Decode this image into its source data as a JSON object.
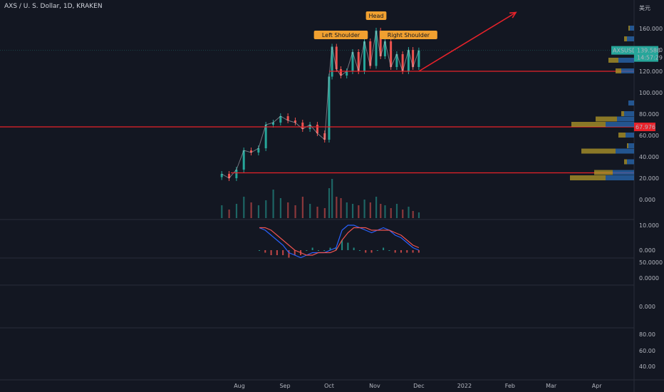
{
  "header": {
    "symbol_line": "AXS / U. S. Dollar, 1D, KRAKEN"
  },
  "colors": {
    "bg": "#131722",
    "up": "#26a69a",
    "down": "#ef5350",
    "level": "#e8222a",
    "annotation": "#f0a030",
    "macd": "#2962ff",
    "signal": "#ef5350",
    "vp_up": "#2a6bb4",
    "vp_down": "#b39a2a"
  },
  "chart_data": [
    {
      "type": "line",
      "title": "AXS / U. S. Dollar, 1D, KRAKEN",
      "x_ticks": [
        "Aug",
        "Sep",
        "Oct",
        "Nov",
        "Dec",
        "2022",
        "Feb",
        "Mar",
        "Apr"
      ],
      "y_ticks": [
        "160.000",
        "140.000",
        "120.000",
        "100.000",
        "80.000",
        "60.000",
        "40.000",
        "20.000",
        "0.000"
      ],
      "y_unit_label": "美元",
      "ylim": [
        -10,
        170
      ],
      "series": [
        {
          "dates": [
            "Jul 20",
            "Jul 25",
            "Jul 30",
            "Aug 04",
            "Aug 09",
            "Aug 14",
            "Aug 19",
            "Aug 24",
            "Aug 29",
            "Sep 03",
            "Sep 08",
            "Sep 13",
            "Sep 18",
            "Sep 23",
            "Sep 28",
            "Oct 01",
            "Oct 03",
            "Oct 06",
            "Oct 09",
            "Oct 13",
            "Oct 17",
            "Oct 21",
            "Oct 25",
            "Oct 29",
            "Nov 02",
            "Nov 05",
            "Nov 08",
            "Nov 12",
            "Nov 16",
            "Nov 20",
            "Nov 24",
            "Nov 27",
            "Dec 01"
          ],
          "values": [
            24,
            20,
            28,
            46,
            44,
            48,
            70,
            72,
            78,
            74,
            72,
            66,
            70,
            62,
            56,
            115,
            143,
            122,
            116,
            120,
            138,
            120,
            148,
            125,
            158,
            134,
            148,
            124,
            136,
            120,
            140,
            124,
            139.5
          ]
        }
      ],
      "current_price_label": "AXSUSD",
      "current_price": "139.580",
      "countdown": "14:57:29",
      "levels": [
        {
          "value": 120,
          "type": "neckline"
        },
        {
          "value": "67.976",
          "label": "67.976"
        },
        {
          "value": 25,
          "type": "support"
        }
      ],
      "annotations": [
        {
          "text": "Left Shoulder",
          "date": "Oct 09",
          "value": 140
        },
        {
          "text": "Head",
          "date": "Nov 02",
          "value": 158
        },
        {
          "text": "Right Shoulder",
          "date": "Nov 24",
          "value": 140
        }
      ],
      "target_arrow": {
        "from_date": "Dec 01",
        "from_value": 120,
        "to_date": "Feb 05",
        "to_value": 175
      },
      "volume": [
        18,
        12,
        20,
        30,
        22,
        18,
        25,
        40,
        28,
        22,
        18,
        30,
        20,
        16,
        14,
        42,
        55,
        30,
        28,
        22,
        20,
        18,
        26,
        22,
        30,
        20,
        18,
        14,
        20,
        12,
        16,
        10,
        8
      ],
      "volume_profile": [
        {
          "price": 160,
          "buy": 6,
          "sell": 2
        },
        {
          "price": 150,
          "buy": 10,
          "sell": 4
        },
        {
          "price": 140,
          "buy": 16,
          "sell": 10
        },
        {
          "price": 130,
          "buy": 22,
          "sell": 14
        },
        {
          "price": 120,
          "buy": 18,
          "sell": 8
        },
        {
          "price": 90,
          "buy": 8,
          "sell": 0
        },
        {
          "price": 80,
          "buy": 14,
          "sell": 4
        },
        {
          "price": 75,
          "buy": 24,
          "sell": 30
        },
        {
          "price": 70,
          "buy": 40,
          "sell": 48
        },
        {
          "price": 60,
          "buy": 12,
          "sell": 10
        },
        {
          "price": 50,
          "buy": 8,
          "sell": 2
        },
        {
          "price": 45,
          "buy": 26,
          "sell": 48
        },
        {
          "price": 35,
          "buy": 10,
          "sell": 4
        },
        {
          "price": 25,
          "buy": 30,
          "sell": 26
        },
        {
          "price": 20,
          "buy": 40,
          "sell": 50
        }
      ]
    },
    {
      "type": "line",
      "title": "",
      "y_ticks": [
        "10.000",
        "0.000"
      ],
      "series": [
        {
          "name": "",
          "values": [
            9,
            8,
            6,
            4,
            2,
            -1,
            -2,
            -3,
            -2,
            -1,
            -1,
            -1,
            0,
            1,
            8,
            10,
            10,
            9,
            8,
            7,
            8,
            9,
            8,
            6,
            5,
            3,
            1,
            0
          ]
        },
        {
          "name": "",
          "values": [
            9,
            9,
            8,
            6,
            4,
            2,
            0,
            -1,
            -2,
            -2,
            -1,
            -1,
            -1,
            0,
            4,
            7,
            9,
            9,
            9,
            8,
            8,
            8,
            8,
            7,
            6,
            4,
            2,
            1
          ]
        }
      ],
      "histogram": [
        0,
        -1,
        -2,
        -2,
        -2,
        -3,
        -2,
        -2,
        0,
        1,
        0,
        0,
        1,
        1,
        4,
        3,
        1,
        0,
        -1,
        -1,
        0,
        1,
        0,
        -1,
        -1,
        -1,
        -1,
        -1
      ],
      "ylim": [
        -4,
        12
      ]
    },
    {
      "type": "line",
      "title": "",
      "y_ticks": [
        "50.0000",
        "0.0000"
      ],
      "series": []
    },
    {
      "type": "line",
      "title": "",
      "y_ticks": [
        "0.000"
      ],
      "series": []
    },
    {
      "type": "line",
      "title": "",
      "y_ticks": [
        "80.00",
        "60.00",
        "40.00"
      ],
      "series": []
    }
  ]
}
